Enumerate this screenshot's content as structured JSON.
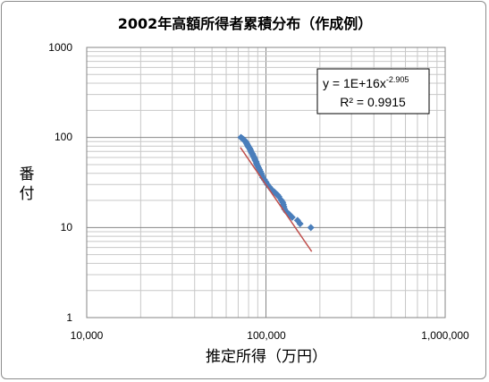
{
  "chart_data": {
    "type": "scatter",
    "title": "2002年高額所得者累積分布（作成例）",
    "xlabel": "推定所得（万円）",
    "ylabel": "番付",
    "xscale": "log",
    "yscale": "log",
    "xlim": [
      10000,
      1000000
    ],
    "ylim": [
      1,
      1000
    ],
    "x_tick_labels": [
      "10,000",
      "100,000",
      "1,000,000"
    ],
    "y_tick_labels": [
      "1",
      "10",
      "100",
      "1000"
    ],
    "grid": true,
    "legend": "none",
    "marker_color": "#4a7ebb",
    "trendline_color": "#c0504d",
    "trendline": {
      "type": "power",
      "coef": 1e+16,
      "exponent": -2.905,
      "x_range": [
        72000,
        180000
      ],
      "equation_prefix": "y = 1E+16x",
      "equation_exponent": "-2.905",
      "r2_text": "R² = 0.9915"
    },
    "points": [
      {
        "x": 72500,
        "y": 100
      },
      {
        "x": 73500,
        "y": 98
      },
      {
        "x": 74500,
        "y": 96
      },
      {
        "x": 75500,
        "y": 94
      },
      {
        "x": 76000,
        "y": 92
      },
      {
        "x": 77000,
        "y": 90
      },
      {
        "x": 77500,
        "y": 88
      },
      {
        "x": 78000,
        "y": 86
      },
      {
        "x": 78500,
        "y": 84
      },
      {
        "x": 79000,
        "y": 82
      },
      {
        "x": 79500,
        "y": 80
      },
      {
        "x": 80000,
        "y": 78
      },
      {
        "x": 81000,
        "y": 76
      },
      {
        "x": 81500,
        "y": 74
      },
      {
        "x": 82000,
        "y": 72
      },
      {
        "x": 82500,
        "y": 70
      },
      {
        "x": 83000,
        "y": 68
      },
      {
        "x": 84000,
        "y": 66
      },
      {
        "x": 84500,
        "y": 64
      },
      {
        "x": 85000,
        "y": 62
      },
      {
        "x": 86000,
        "y": 60
      },
      {
        "x": 86500,
        "y": 58
      },
      {
        "x": 87000,
        "y": 56
      },
      {
        "x": 88000,
        "y": 54
      },
      {
        "x": 88500,
        "y": 52
      },
      {
        "x": 89000,
        "y": 50
      },
      {
        "x": 90000,
        "y": 48
      },
      {
        "x": 91000,
        "y": 46
      },
      {
        "x": 92000,
        "y": 44
      },
      {
        "x": 93000,
        "y": 42
      },
      {
        "x": 94000,
        "y": 40
      },
      {
        "x": 95000,
        "y": 38
      },
      {
        "x": 96000,
        "y": 36
      },
      {
        "x": 98000,
        "y": 34
      },
      {
        "x": 100000,
        "y": 32
      },
      {
        "x": 102000,
        "y": 30
      },
      {
        "x": 105000,
        "y": 28
      },
      {
        "x": 108000,
        "y": 26
      },
      {
        "x": 111000,
        "y": 25
      },
      {
        "x": 113000,
        "y": 24
      },
      {
        "x": 116000,
        "y": 23
      },
      {
        "x": 118000,
        "y": 22
      },
      {
        "x": 122000,
        "y": 20
      },
      {
        "x": 124000,
        "y": 19
      },
      {
        "x": 125000,
        "y": 18
      },
      {
        "x": 126000,
        "y": 17
      },
      {
        "x": 127000,
        "y": 16
      },
      {
        "x": 130000,
        "y": 15
      },
      {
        "x": 135000,
        "y": 14
      },
      {
        "x": 140000,
        "y": 13
      },
      {
        "x": 150000,
        "y": 12
      },
      {
        "x": 155000,
        "y": 11
      },
      {
        "x": 178000,
        "y": 10
      }
    ]
  }
}
